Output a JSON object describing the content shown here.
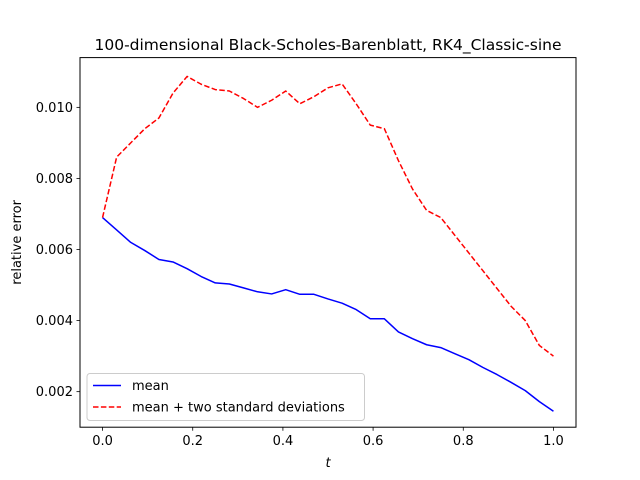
{
  "chart_data": {
    "type": "line",
    "title": "100-dimensional Black-Scholes-Barenblatt, RK4_Classic-sine",
    "xlabel": "t",
    "ylabel": "relative error",
    "xlim": [
      -0.05,
      1.05
    ],
    "ylim": [
      0.001,
      0.0114
    ],
    "xticks": [
      0.0,
      0.2,
      0.4,
      0.6,
      0.8,
      1.0
    ],
    "xtick_labels": [
      "0.0",
      "0.2",
      "0.4",
      "0.6",
      "0.8",
      "1.0"
    ],
    "yticks": [
      0.002,
      0.004,
      0.006,
      0.008,
      0.01
    ],
    "ytick_labels": [
      "0.002",
      "0.004",
      "0.006",
      "0.008",
      "0.010"
    ],
    "grid": false,
    "legend_position": "lower-left",
    "x": [
      0.0,
      0.03125,
      0.0625,
      0.09375,
      0.125,
      0.15625,
      0.1875,
      0.21875,
      0.25,
      0.28125,
      0.3125,
      0.34375,
      0.375,
      0.40625,
      0.4375,
      0.46875,
      0.5,
      0.53125,
      0.5625,
      0.59375,
      0.625,
      0.65625,
      0.6875,
      0.71875,
      0.75,
      0.78125,
      0.8125,
      0.84375,
      0.875,
      0.90625,
      0.9375,
      0.96875,
      1.0
    ],
    "series": [
      {
        "name": "mean",
        "color": "#0000ff",
        "style": "solid",
        "values": [
          0.0069,
          0.00655,
          0.0062,
          0.00597,
          0.00572,
          0.00565,
          0.00546,
          0.00524,
          0.00506,
          0.00503,
          0.00492,
          0.00481,
          0.00475,
          0.00487,
          0.00474,
          0.00474,
          0.00461,
          0.00449,
          0.00431,
          0.00405,
          0.00405,
          0.00368,
          0.00349,
          0.00332,
          0.00324,
          0.00307,
          0.0029,
          0.00268,
          0.00248,
          0.00226,
          0.00203,
          0.00172,
          0.00145
        ]
      },
      {
        "name": "mean + two standard deviations",
        "color": "#ff0000",
        "style": "dashed",
        "values": [
          0.0069,
          0.0086,
          0.009,
          0.0094,
          0.0097,
          0.0104,
          0.01087,
          0.01065,
          0.0105,
          0.01046,
          0.01025,
          0.01,
          0.0102,
          0.01046,
          0.0101,
          0.0103,
          0.01055,
          0.01066,
          0.0101,
          0.0095,
          0.0094,
          0.0085,
          0.0077,
          0.0071,
          0.0069,
          0.0064,
          0.0059,
          0.0054,
          0.0049,
          0.0044,
          0.004,
          0.0033,
          0.003
        ]
      }
    ]
  }
}
